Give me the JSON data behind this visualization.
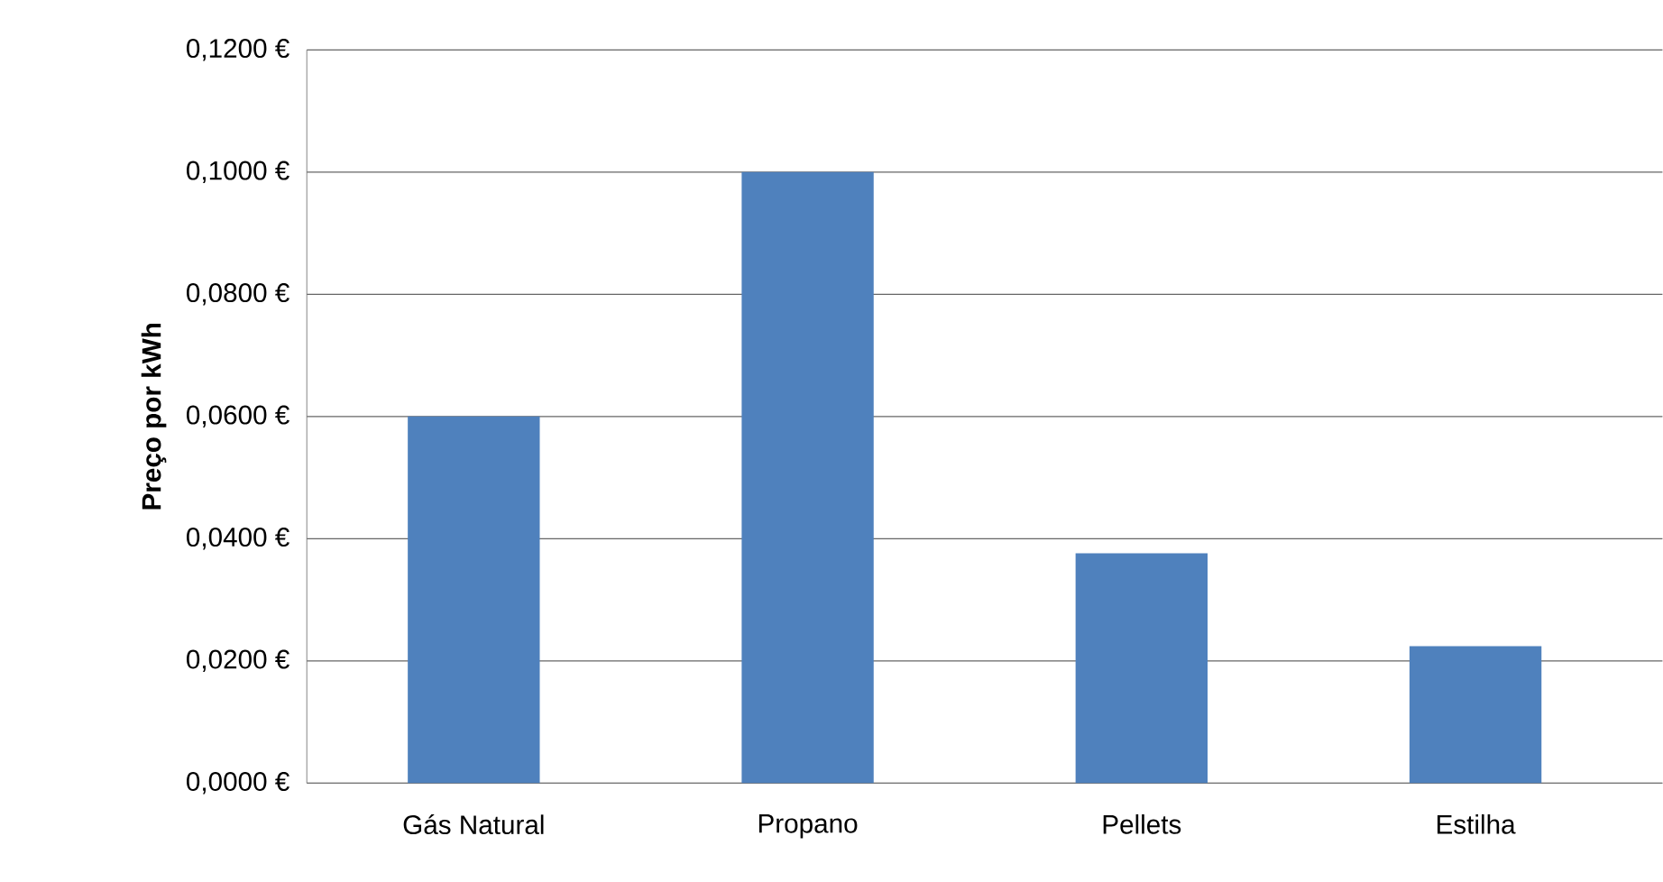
{
  "chart_data": {
    "type": "bar",
    "ylabel": "Preço por kWh",
    "categories": [
      "Gás Natural",
      "Propano",
      "Pellets",
      "Estilha"
    ],
    "values": [
      0.06,
      0.1,
      0.0376,
      0.0224
    ],
    "color": "#4f81bd",
    "ylim": [
      0,
      0.12
    ],
    "yticks": [
      {
        "value": 0,
        "label": "0,0000 €"
      },
      {
        "value": 0.02,
        "label": "0,0200 €"
      },
      {
        "value": 0.04,
        "label": "0,0400 €"
      },
      {
        "value": 0.06,
        "label": "0,0600 €"
      },
      {
        "value": 0.08,
        "label": "0,0800 €"
      },
      {
        "value": 0.1,
        "label": "0,1000 €"
      },
      {
        "value": 0.12,
        "label": "0,1200 €"
      }
    ],
    "grid": "y"
  }
}
